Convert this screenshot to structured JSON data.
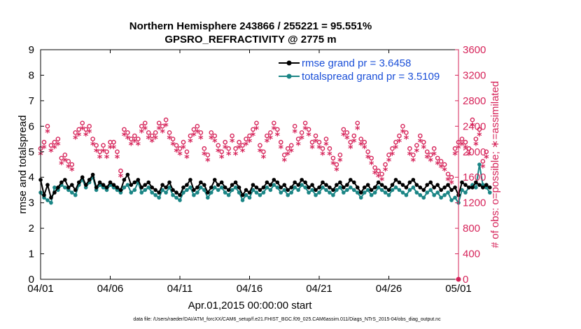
{
  "chart_data": {
    "type": "line",
    "title": "Northern Hemisphere 243866 / 255221 = 95.551%",
    "subtitle": "GPSRO_REFRACTIVITY @ 2775 m",
    "xlabel": "Apr.01,2015 00:00:00 start",
    "ylabel": "rmse and totalspread",
    "y2label": "# of obs: o=possible; ∗=assimilated",
    "footer": "data file: /Users/raeder/DAI/ATM_forcXX/CAM6_setup/f.e21.FHIST_BGC.f09_025.CAM6assim.011/Diags_NTrS_2015-04/obs_diag_output.nc",
    "xlim": [
      0,
      30
    ],
    "ylim": [
      0,
      9
    ],
    "y2lim": [
      0,
      3600
    ],
    "grid": false,
    "legend_position": "top-right",
    "x_tick_labels": [
      "04/01",
      "04/06",
      "04/11",
      "04/16",
      "04/21",
      "04/26",
      "05/01"
    ],
    "x_tick_values": [
      0,
      5,
      10,
      15,
      20,
      25,
      30
    ],
    "y_tick_labels": [
      "0",
      "1",
      "2",
      "3",
      "4",
      "5",
      "6",
      "7",
      "8",
      "9"
    ],
    "y_tick_values": [
      0,
      1,
      2,
      3,
      4,
      5,
      6,
      7,
      8,
      9
    ],
    "y2_tick_labels": [
      "0",
      "400",
      "800",
      "1200",
      "1600",
      "2000",
      "2400",
      "2800",
      "3200",
      "3600"
    ],
    "y2_tick_values": [
      0,
      400,
      800,
      1200,
      1600,
      2000,
      2400,
      2800,
      3200,
      3600
    ],
    "x_step_days": 0.25,
    "series": [
      {
        "name": "rmse grand pr = 3.6458",
        "color": "#000000",
        "axis": "left",
        "values": [
          3.9,
          3.3,
          3.7,
          3.2,
          3.4,
          3.6,
          3.8,
          3.9,
          3.6,
          3.7,
          3.5,
          3.8,
          4.0,
          3.7,
          3.9,
          4.1,
          3.6,
          3.8,
          3.7,
          3.6,
          3.8,
          3.7,
          3.6,
          3.5,
          3.9,
          4.1,
          3.7,
          3.8,
          3.9,
          3.6,
          3.7,
          3.8,
          3.6,
          3.5,
          3.4,
          3.7,
          3.6,
          3.8,
          3.5,
          3.4,
          3.3,
          3.6,
          3.7,
          3.9,
          3.5,
          3.6,
          3.8,
          3.7,
          3.4,
          3.6,
          3.9,
          3.7,
          3.8,
          3.6,
          3.5,
          3.7,
          3.8,
          3.6,
          3.3,
          3.5,
          3.4,
          3.7,
          3.6,
          3.5,
          3.6,
          3.8,
          3.7,
          3.9,
          3.8,
          3.6,
          3.7,
          3.5,
          3.6,
          3.8,
          3.7,
          3.9,
          3.8,
          3.6,
          3.7,
          3.5,
          3.6,
          3.8,
          3.7,
          3.6,
          3.5,
          3.7,
          3.8,
          3.6,
          3.7,
          3.9,
          3.8,
          3.6,
          3.4,
          3.6,
          3.7,
          3.5,
          3.6,
          3.8,
          3.7,
          3.6,
          3.5,
          3.7,
          3.9,
          3.8,
          3.7,
          3.6,
          3.8,
          3.9,
          3.7,
          3.6,
          3.5,
          3.7,
          3.8,
          3.6,
          3.7,
          3.5,
          3.6,
          3.7,
          3.5,
          3.6,
          3.3,
          3.8,
          3.7,
          3.6,
          3.6,
          3.8,
          3.7,
          3.6,
          3.7,
          3.6
        ]
      },
      {
        "name": "totalspread grand pr = 3.5109",
        "color": "#1a8585",
        "axis": "left",
        "values": [
          3.4,
          3.2,
          3.1,
          3.0,
          3.6,
          3.5,
          3.7,
          3.6,
          3.5,
          3.4,
          3.3,
          3.7,
          3.9,
          3.6,
          3.8,
          4.0,
          3.5,
          3.7,
          3.6,
          3.5,
          3.7,
          3.6,
          3.5,
          3.4,
          3.6,
          3.7,
          3.4,
          3.5,
          3.8,
          3.4,
          3.5,
          3.6,
          3.4,
          3.3,
          3.2,
          3.5,
          3.4,
          3.6,
          3.3,
          3.2,
          3.1,
          3.4,
          3.5,
          3.6,
          3.3,
          3.4,
          3.6,
          3.5,
          3.2,
          3.4,
          3.6,
          3.5,
          3.6,
          3.4,
          3.3,
          3.5,
          3.6,
          3.4,
          3.1,
          3.3,
          3.2,
          3.5,
          3.4,
          3.3,
          3.4,
          3.6,
          3.5,
          3.7,
          3.6,
          3.4,
          3.5,
          3.3,
          3.4,
          3.6,
          3.5,
          3.7,
          3.6,
          3.4,
          3.5,
          3.3,
          3.4,
          3.6,
          3.5,
          3.4,
          3.3,
          3.5,
          3.6,
          3.4,
          3.5,
          3.6,
          3.5,
          3.4,
          3.2,
          3.4,
          3.5,
          3.3,
          3.4,
          3.6,
          3.5,
          3.4,
          3.3,
          3.5,
          3.6,
          3.5,
          3.4,
          3.3,
          3.5,
          3.6,
          3.4,
          3.3,
          3.2,
          3.4,
          3.5,
          3.3,
          3.4,
          3.2,
          3.3,
          3.4,
          3.1,
          3.2,
          3.0,
          3.5,
          3.4,
          3.6,
          3.7,
          3.6,
          4.5,
          3.7,
          3.6,
          3.4
        ]
      },
      {
        "name": "possible",
        "color": "#d6245a",
        "axis": "right",
        "marker": "o",
        "values": [
          2050,
          2150,
          2400,
          2100,
          2150,
          2200,
          1900,
          1950,
          1850,
          1800,
          2300,
          2350,
          2450,
          2350,
          2400,
          2200,
          2100,
          2000,
          2100,
          2000,
          2150,
          2150,
          2000,
          1700,
          2350,
          2300,
          2200,
          2250,
          2200,
          2400,
          2450,
          2300,
          2250,
          2300,
          2450,
          2400,
          2500,
          2300,
          2200,
          2100,
          2050,
          2150,
          2000,
          2250,
          2350,
          2400,
          2300,
          2050,
          1950,
          2300,
          2250,
          2100,
          2000,
          2150,
          2050,
          2250,
          2050,
          2150,
          2100,
          2200,
          2250,
          2350,
          2450,
          2100,
          2000,
          2250,
          2300,
          2450,
          2350,
          2150,
          1950,
          2050,
          2100,
          2400,
          2200,
          2300,
          2450,
          2350,
          2150,
          2250,
          2150,
          2050,
          2200,
          2050,
          1900,
          1800,
          1950,
          2350,
          2300,
          2150,
          2250,
          2450,
          2200,
          2150,
          2000,
          1900,
          1750,
          1700,
          1650,
          1800,
          1950,
          2050,
          2150,
          2250,
          2400,
          2300,
          2050,
          1950,
          2100,
          2250,
          2150,
          2000,
          1950,
          2050,
          1900,
          1850,
          1800,
          1650,
          1600,
          2050,
          2150,
          2200,
          2150,
          2050,
          2500,
          2200,
          2350,
          1850,
          2000
        ]
      },
      {
        "name": "assimilated",
        "color": "#d6245a",
        "axis": "right",
        "marker": "*",
        "values": [
          1950,
          2050,
          2300,
          2000,
          2050,
          2100,
          1800,
          1850,
          1750,
          1700,
          2200,
          2250,
          2350,
          2250,
          2300,
          2100,
          2000,
          1900,
          2000,
          1900,
          2050,
          2050,
          1900,
          1600,
          2250,
          2200,
          2100,
          2150,
          2100,
          2300,
          2350,
          2200,
          2150,
          2200,
          2350,
          2300,
          2400,
          2200,
          2100,
          2000,
          1950,
          2050,
          1900,
          2150,
          2250,
          2300,
          2200,
          1950,
          1850,
          2200,
          2150,
          2000,
          1900,
          2050,
          1950,
          2150,
          1950,
          2050,
          2000,
          2100,
          2150,
          2250,
          2350,
          2000,
          1900,
          2150,
          2200,
          2350,
          2250,
          2050,
          1850,
          1950,
          2000,
          2300,
          2100,
          2200,
          2350,
          2250,
          2050,
          2150,
          2050,
          1950,
          2100,
          1950,
          1800,
          1700,
          1850,
          2250,
          2200,
          2050,
          2150,
          2350,
          2100,
          2050,
          1900,
          1800,
          1650,
          1600,
          1550,
          1700,
          1850,
          1950,
          2050,
          2150,
          2300,
          2200,
          1950,
          1850,
          2000,
          2150,
          2050,
          1900,
          1850,
          1950,
          1800,
          1750,
          1700,
          1550,
          1500,
          1950,
          2050,
          2100,
          2050,
          1950,
          2400,
          2100,
          2250,
          1750,
          1900
        ]
      }
    ]
  }
}
